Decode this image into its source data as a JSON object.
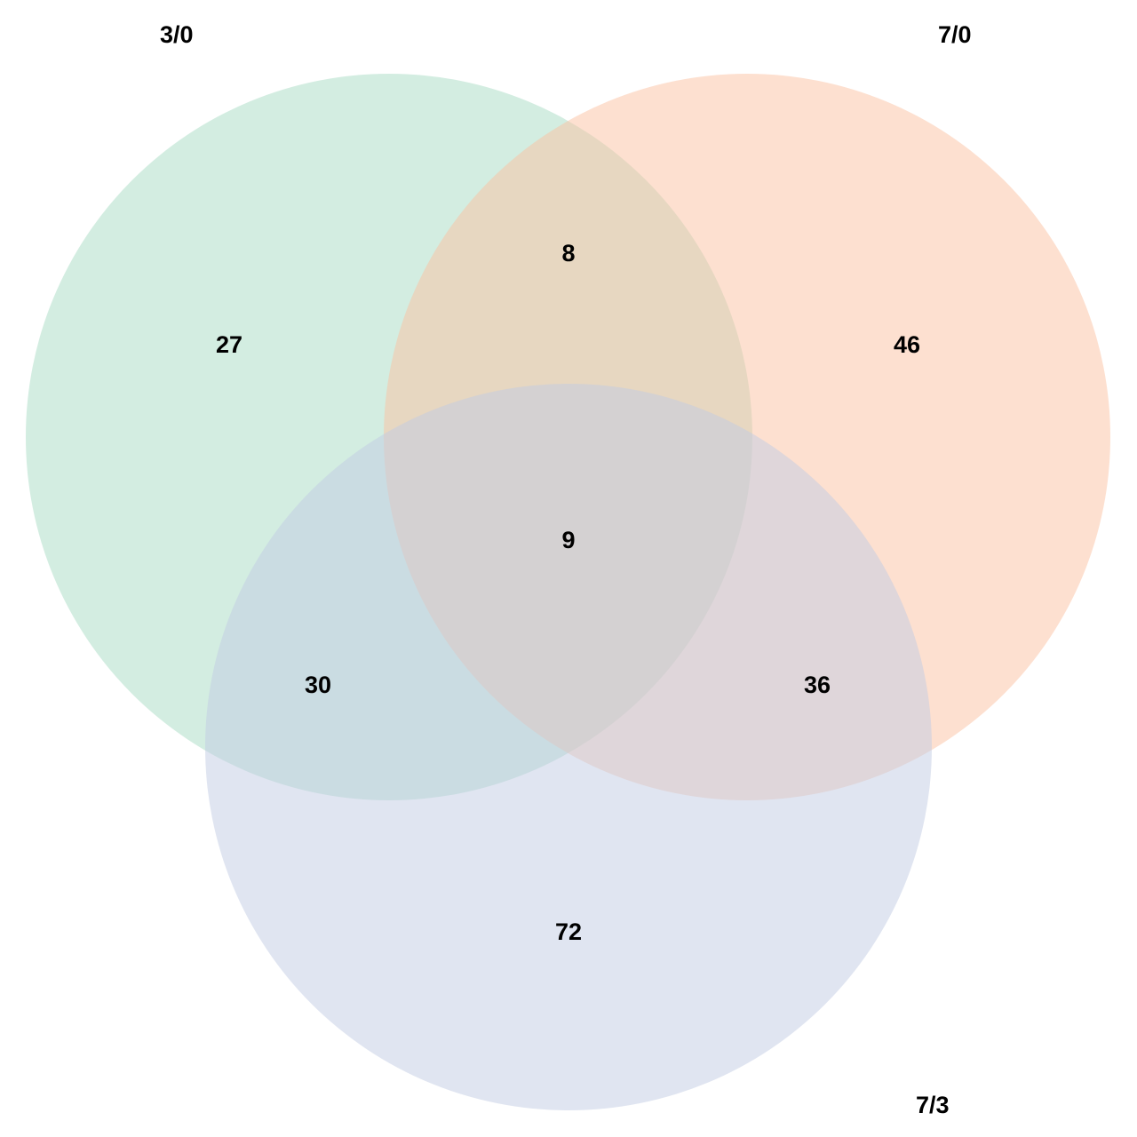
{
  "sets": [
    {
      "id": "a",
      "label": "3/0",
      "color": "#a7dcc3"
    },
    {
      "id": "b",
      "label": "7/0",
      "color": "#fbc2a2"
    },
    {
      "id": "c",
      "label": "7/3",
      "color": "#c2cbe4"
    }
  ],
  "regions": {
    "only_a": "27",
    "only_b": "46",
    "only_c": "72",
    "a_b": "8",
    "a_c": "30",
    "b_c": "36",
    "a_b_c": "9"
  }
}
